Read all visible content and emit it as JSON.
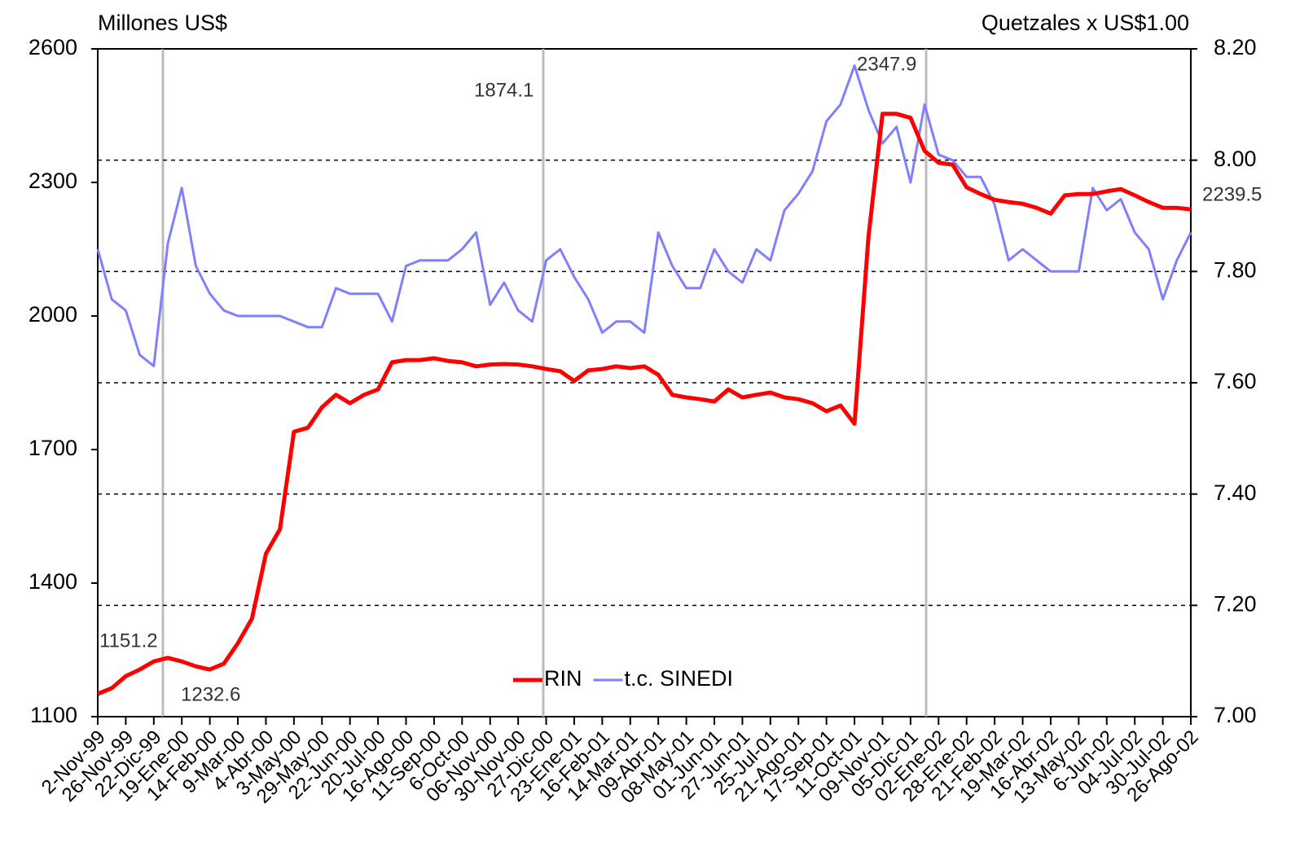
{
  "chart_data": {
    "type": "line",
    "y_label": "Millones US$",
    "y2_label": "Quetzales x US$1.00",
    "categories": [
      "2-Nov-99",
      null,
      "26-Nov-99",
      null,
      "22-Dic-99",
      null,
      "19-Ene-00",
      null,
      "14-Feb-00",
      null,
      "9-Mar-00",
      null,
      "4-Abr-00",
      null,
      "3-May-00",
      null,
      "29-May-00",
      null,
      "22-Jun-00",
      null,
      "20-Jul-00",
      null,
      "16-Ago-00",
      null,
      "11-Sep-00",
      null,
      "6-Oct-00",
      null,
      "06-Nov-00",
      null,
      "30-Nov-00",
      null,
      "27-Dic-00",
      null,
      "23-Ene-01",
      null,
      "16-Feb-01",
      null,
      "14-Mar-01",
      null,
      "09-Abr-01",
      null,
      "08-May-01",
      null,
      "01-Jun-01",
      null,
      "27-Jun-01",
      null,
      "25-Jul-01",
      null,
      "21-Ago-01",
      null,
      "17-Sep-01",
      null,
      "11-Oct-01",
      null,
      "09-Nov-01",
      null,
      "05-Dic-01",
      null,
      "02-Ene-02",
      null,
      "28-Ene-02",
      null,
      "21-Feb-02",
      null,
      "19-Mar-02",
      null,
      "16-Abr-02",
      null,
      "13-May-02",
      null,
      "6-Jun-02",
      null,
      "04-Jul-02",
      null,
      "30-Jul-02",
      null,
      "26-Ago-02"
    ],
    "series": [
      {
        "name": "RIN",
        "color": "#ff0000",
        "axis": "y",
        "values": [
          1151.2,
          1164,
          1191,
          1206,
          1224,
          1232,
          1224,
          1213,
          1206,
          1219,
          1265,
          1320,
          1466,
          1521,
          1740,
          1749,
          1795,
          1823,
          1804,
          1823,
          1835,
          1896,
          1901,
          1901,
          1905,
          1899,
          1896,
          1887,
          1891,
          1892,
          1891,
          1887,
          1881,
          1876,
          1854,
          1878,
          1881,
          1887,
          1883,
          1887,
          1868,
          1823,
          1817,
          1813,
          1808,
          1835,
          1817,
          1823,
          1828,
          1817,
          1813,
          1804,
          1786,
          1799,
          1758,
          2179,
          2454,
          2454,
          2445,
          2371,
          2344,
          2340,
          2289,
          2274,
          2261,
          2256,
          2252,
          2243,
          2230,
          2271,
          2274,
          2274,
          2280,
          2285,
          2271,
          2256,
          2243,
          2243,
          2239.5
        ]
      },
      {
        "name": "t.c. SINEDI",
        "color": "#8080ff",
        "axis": "y2",
        "values": [
          7.84,
          7.75,
          7.73,
          7.65,
          7.63,
          7.85,
          7.95,
          7.81,
          7.76,
          7.73,
          7.72,
          7.72,
          7.72,
          7.72,
          7.71,
          7.7,
          7.7,
          7.77,
          7.76,
          7.76,
          7.76,
          7.71,
          7.81,
          7.82,
          7.82,
          7.82,
          7.84,
          7.87,
          7.74,
          7.78,
          7.73,
          7.71,
          7.82,
          7.84,
          7.79,
          7.75,
          7.69,
          7.71,
          7.71,
          7.69,
          7.87,
          7.81,
          7.77,
          7.77,
          7.84,
          7.8,
          7.78,
          7.84,
          7.82,
          7.91,
          7.94,
          7.98,
          8.07,
          8.1,
          8.17,
          8.09,
          8.03,
          8.06,
          7.96,
          8.1,
          8.01,
          8.0,
          7.97,
          7.97,
          7.92,
          7.82,
          7.84,
          7.82,
          7.8,
          7.8,
          7.8,
          7.95,
          7.91,
          7.93,
          7.87,
          7.84,
          7.75,
          7.82,
          7.87
        ]
      }
    ],
    "ylim": [
      1100,
      2600
    ],
    "yticks": [
      1100,
      1400,
      1700,
      2000,
      2300,
      2600
    ],
    "y2lim": [
      7,
      8.2
    ],
    "y2ticks": [
      {
        "value": 7,
        "label": "7.00"
      },
      {
        "value": 7.2,
        "label": "7.20"
      },
      {
        "value": 7.4,
        "label": "7.40"
      },
      {
        "value": 7.6,
        "label": "7.60"
      },
      {
        "value": 7.8,
        "label": "7.80"
      },
      {
        "value": 8,
        "label": "8.00"
      },
      {
        "value": 8.2,
        "label": "8.20"
      }
    ],
    "grid": true,
    "legend": "lower center",
    "annotations": [
      "1151.2",
      "1232.6",
      "1874.1",
      "2347.9",
      "2239.5"
    ]
  }
}
